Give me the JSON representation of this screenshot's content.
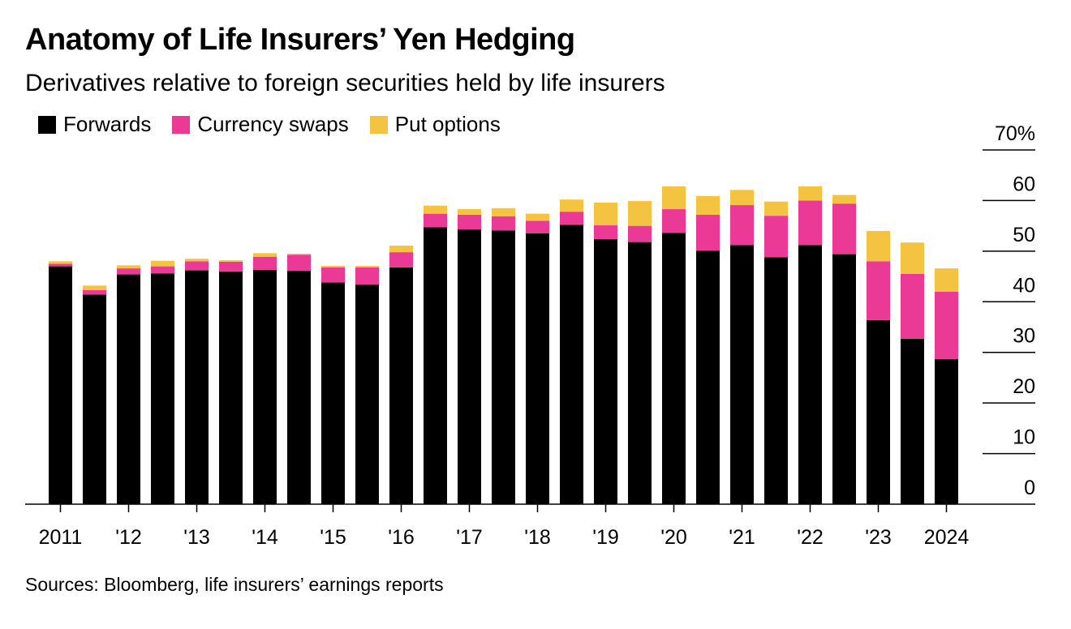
{
  "chart_data": {
    "type": "bar",
    "stacked": true,
    "title": "Anatomy of Life Insurers’ Yen Hedging",
    "subtitle": "Derivatives relative to foreign securities held by life insurers",
    "source": "Sources: Bloomberg, life insurers’ earnings reports",
    "xlabel": "",
    "ylabel": "",
    "ylim": [
      0,
      70
    ],
    "y_ticks": [
      0,
      10,
      20,
      30,
      40,
      50,
      60,
      70
    ],
    "y_tick_labels": [
      "0",
      "10",
      "20",
      "30",
      "40",
      "50",
      "60",
      "70%"
    ],
    "y_axis_position": "right",
    "grid": false,
    "legend_position": "top-left",
    "x_tick_labels": [
      "2011",
      "'12",
      "'13",
      "'14",
      "'15",
      "'16",
      "'17",
      "'18",
      "'19",
      "'20",
      "'21",
      "'22",
      "'23",
      "2024"
    ],
    "categories": [
      "2011 H1",
      "2011 H2",
      "2012 H1",
      "2012 H2",
      "2013 H1",
      "2013 H2",
      "2014 H1",
      "2014 H2",
      "2015 H1",
      "2015 H2",
      "2016 H1",
      "2016 H2",
      "2017 H1",
      "2017 H2",
      "2018 H1",
      "2018 H2",
      "2019 H1",
      "2019 H2",
      "2020 H1",
      "2020 H2",
      "2021 H1",
      "2021 H2",
      "2022 H1",
      "2022 H2",
      "2023 H1",
      "2023 H2",
      "2024 H1"
    ],
    "series": [
      {
        "name": "Forwards",
        "color": "#000000",
        "values": [
          47.0,
          41.4,
          45.4,
          45.6,
          46.2,
          46.0,
          46.3,
          46.1,
          43.8,
          43.4,
          46.8,
          54.7,
          54.3,
          54.1,
          53.5,
          55.2,
          52.4,
          51.8,
          53.6,
          50.1,
          51.2,
          48.8,
          51.2,
          49.4,
          36.4,
          32.7,
          28.7
        ],
        "values_note": "percent"
      },
      {
        "name": "Currency swaps",
        "color": "#ea3a96",
        "values": [
          0.5,
          0.9,
          1.2,
          1.4,
          1.8,
          1.9,
          2.6,
          3.2,
          3.0,
          3.4,
          3.0,
          2.7,
          2.9,
          2.8,
          2.5,
          2.6,
          2.7,
          3.2,
          4.7,
          7.1,
          7.9,
          8.2,
          8.8,
          10.0,
          11.6,
          12.8,
          13.3
        ],
        "values_note": "percent"
      },
      {
        "name": "Put options",
        "color": "#f5c342",
        "values": [
          0.5,
          0.9,
          0.6,
          1.1,
          0.5,
          0.3,
          0.7,
          0.2,
          0.3,
          0.3,
          1.3,
          1.6,
          1.1,
          1.6,
          1.4,
          2.4,
          4.5,
          4.9,
          4.5,
          3.7,
          3.0,
          2.8,
          2.8,
          1.7,
          6.0,
          6.2,
          4.6
        ],
        "values_note": "percent"
      }
    ]
  }
}
